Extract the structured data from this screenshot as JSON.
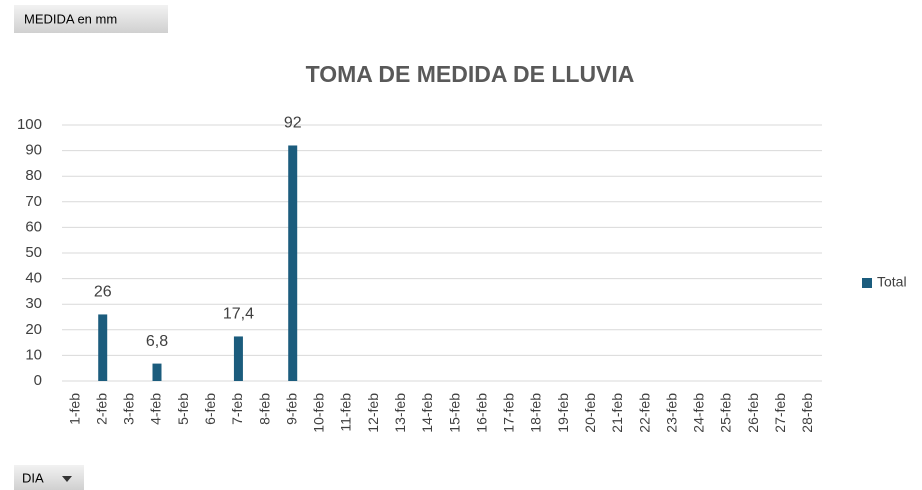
{
  "chart_data": {
    "type": "bar",
    "title": "TOMA DE MEDIDA DE LLUVIA",
    "value_field": "MEDIDA en mm",
    "axis_field": "DIA",
    "categories": [
      "1-feb",
      "2-feb",
      "3-feb",
      "4-feb",
      "5-feb",
      "6-feb",
      "7-feb",
      "8-feb",
      "9-feb",
      "10-feb",
      "11-feb",
      "12-feb",
      "13-feb",
      "14-feb",
      "15-feb",
      "16-feb",
      "17-feb",
      "18-feb",
      "19-feb",
      "20-feb",
      "21-feb",
      "22-feb",
      "23-feb",
      "24-feb",
      "25-feb",
      "26-feb",
      "27-feb",
      "28-feb"
    ],
    "series": [
      {
        "name": "Total",
        "color": "#1b5c7d",
        "values": [
          null,
          26,
          null,
          6.8,
          null,
          null,
          17.4,
          null,
          92,
          null,
          null,
          null,
          null,
          null,
          null,
          null,
          null,
          null,
          null,
          null,
          null,
          null,
          null,
          null,
          null,
          null,
          null,
          null
        ],
        "value_labels": [
          null,
          "26",
          null,
          "6,8",
          null,
          null,
          "17,4",
          null,
          "92",
          null,
          null,
          null,
          null,
          null,
          null,
          null,
          null,
          null,
          null,
          null,
          null,
          null,
          null,
          null,
          null,
          null,
          null,
          null
        ]
      }
    ],
    "ylim": [
      0,
      100
    ],
    "yticks": [
      0,
      10,
      20,
      30,
      40,
      50,
      60,
      70,
      80,
      90,
      100
    ],
    "grid": true,
    "legend": "right"
  }
}
